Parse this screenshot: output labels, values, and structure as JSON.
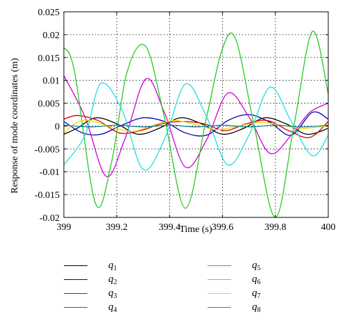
{
  "chart_data": {
    "type": "line",
    "title": "",
    "xlabel": "Time (s)",
    "ylabel": "Response of mode coordinates (m)",
    "xlim": [
      399,
      400
    ],
    "ylim": [
      -0.02,
      0.025
    ],
    "x_ticks": [
      "399",
      "399.2",
      "399.4",
      "399.6",
      "399.8",
      "400"
    ],
    "y_ticks": [
      "-0.02",
      "-0.015",
      "-0.01",
      "-0.005",
      "0",
      "0.005",
      "0.01",
      "0.015",
      "0.02",
      "0.025"
    ],
    "grid": true,
    "legend_position": "bottom",
    "series": [
      {
        "name": "q",
        "sub": "1",
        "color": "#000000",
        "x": [
          399.0,
          399.05,
          399.12,
          399.2,
          399.28,
          399.36,
          399.44,
          399.52,
          399.6,
          399.68,
          399.76,
          399.84,
          399.92,
          400.0
        ],
        "y": [
          -0.0018,
          -0.0005,
          0.0018,
          0.0005,
          -0.0018,
          -0.0005,
          0.0018,
          0.0005,
          -0.0018,
          -0.0005,
          0.0018,
          0.0005,
          -0.0018,
          -0.0005
        ]
      },
      {
        "name": "q",
        "sub": "2",
        "color": "#0000aa",
        "x": [
          399.0,
          399.07,
          399.14,
          399.22,
          399.3,
          399.38,
          399.46,
          399.54,
          399.62,
          399.7,
          399.78,
          399.86,
          399.94,
          400.0
        ],
        "y": [
          0.001,
          -0.0015,
          -0.0018,
          0.0002,
          0.0018,
          0.001,
          -0.0015,
          -0.002,
          0.0012,
          0.0025,
          0.0008,
          -0.002,
          0.003,
          0.0015
        ]
      },
      {
        "name": "q",
        "sub": "3",
        "color": "#d40000",
        "x": [
          399.0,
          399.05,
          399.13,
          399.21,
          399.29,
          399.37,
          399.45,
          399.53,
          399.61,
          399.69,
          399.77,
          399.85,
          399.93,
          400.0
        ],
        "y": [
          0.0015,
          0.0023,
          0.0012,
          -0.0015,
          -0.001,
          0.0005,
          0.001,
          0.0005,
          -0.001,
          0.0005,
          0.0012,
          -0.001,
          -0.0025,
          0.001
        ]
      },
      {
        "name": "q",
        "sub": "4",
        "color": "#d000d0",
        "x": [
          399.0,
          399.08,
          399.16,
          399.23,
          399.31,
          399.38,
          399.46,
          399.54,
          399.62,
          399.7,
          399.78,
          399.86,
          399.93,
          400.0
        ],
        "y": [
          0.011,
          0.002,
          -0.011,
          -0.003,
          0.0103,
          0.003,
          -0.009,
          -0.003,
          0.0072,
          0.002,
          -0.006,
          -0.002,
          0.003,
          0.005
        ]
      },
      {
        "name": "q",
        "sub": "5",
        "color": "#22cc22",
        "x": [
          399.0,
          399.04,
          399.12,
          399.18,
          399.24,
          399.31,
          399.38,
          399.46,
          399.54,
          399.6,
          399.65,
          399.72,
          399.8,
          399.87,
          399.94,
          400.0
        ],
        "y": [
          0.0172,
          0.012,
          -0.017,
          -0.008,
          0.012,
          0.0174,
          0.002,
          -0.018,
          0.002,
          0.017,
          0.019,
          0.0,
          -0.02,
          0.0,
          0.0207,
          0.007
        ]
      },
      {
        "name": "q",
        "sub": "6",
        "color": "#22dddd",
        "x": [
          399.0,
          399.08,
          399.14,
          399.22,
          399.3,
          399.38,
          399.46,
          399.54,
          399.62,
          399.7,
          399.78,
          399.86,
          399.94,
          400.0
        ],
        "y": [
          -0.0085,
          -0.002,
          0.0093,
          0.0035,
          -0.0095,
          -0.003,
          0.0092,
          0.002,
          -0.0085,
          -0.002,
          0.0085,
          0.001,
          -0.0065,
          -0.002
        ]
      },
      {
        "name": "q",
        "sub": "7",
        "color": "#e8d800",
        "x": [
          399.0,
          399.05,
          399.1,
          399.18,
          399.26,
          399.34,
          399.42,
          399.5,
          399.58,
          399.66,
          399.74,
          399.82,
          399.9,
          400.0
        ],
        "y": [
          -0.0015,
          0.0008,
          0.0012,
          -0.0002,
          -0.0012,
          0.0002,
          0.0012,
          0.0003,
          -0.0008,
          0.0,
          0.0008,
          0.0002,
          -0.0005,
          0.0
        ]
      },
      {
        "name": "q",
        "sub": "8",
        "color": "#1e8aa8",
        "x": [
          399.0,
          399.1,
          399.2,
          399.3,
          399.4,
          399.5,
          399.6,
          399.7,
          399.8,
          399.9,
          400.0
        ],
        "y": [
          0.0002,
          -0.0002,
          0.0002,
          -0.0002,
          0.0002,
          -0.0002,
          0.0002,
          -0.0002,
          0.0002,
          -0.0002,
          0.0002
        ]
      }
    ]
  }
}
